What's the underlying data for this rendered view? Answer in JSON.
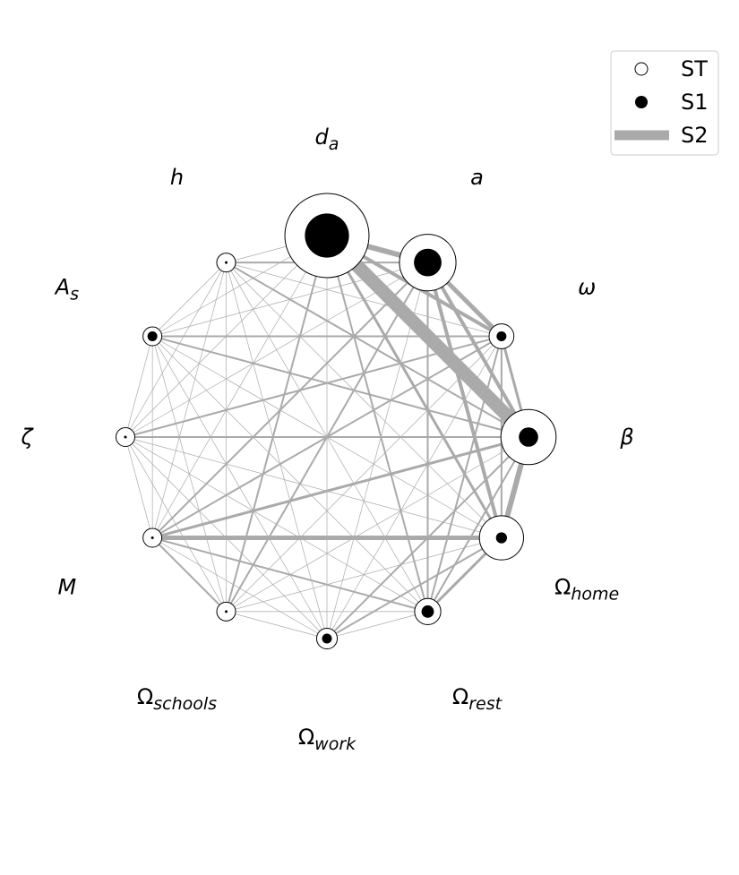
{
  "chart_data": {
    "type": "network",
    "title": "",
    "colors": {
      "edge": "#aaaaaa",
      "node_fill": "#ffffff",
      "node_stroke": "#000000",
      "first_order": "#000000"
    },
    "legend": {
      "position": "top-right",
      "items": [
        {
          "label": "ST",
          "kind": "open-circle"
        },
        {
          "label": "S1",
          "kind": "filled-circle"
        },
        {
          "label": "S2",
          "kind": "thick-line"
        }
      ]
    },
    "nodes": [
      {
        "id": "d_a",
        "base": "d",
        "sub": "a",
        "italic": true,
        "ST": 0.61,
        "S1": 0.32
      },
      {
        "id": "a",
        "base": "a",
        "sub": "",
        "italic": true,
        "ST": 0.41,
        "S1": 0.2
      },
      {
        "id": "omega",
        "base": "ω",
        "sub": "",
        "italic": true,
        "ST": 0.18,
        "S1": 0.05
      },
      {
        "id": "beta",
        "base": "β",
        "sub": "",
        "italic": true,
        "ST": 0.4,
        "S1": 0.14
      },
      {
        "id": "omega_home",
        "base": "Ω",
        "sub": "home",
        "italic": false,
        "ST": 0.32,
        "S1": 0.08
      },
      {
        "id": "omega_rest",
        "base": "Ω",
        "sub": "rest",
        "italic": false,
        "ST": 0.19,
        "S1": 0.09
      },
      {
        "id": "omega_work",
        "base": "Ω",
        "sub": "work",
        "italic": false,
        "ST": 0.15,
        "S1": 0.06
      },
      {
        "id": "omega_schools",
        "base": "Ω",
        "sub": "schools",
        "italic": false,
        "ST": 0.03,
        "S1": 0.0
      },
      {
        "id": "M",
        "base": "M",
        "sub": "",
        "italic": true,
        "ST": 0.13,
        "S1": 0.0
      },
      {
        "id": "zeta",
        "base": "ζ",
        "sub": "",
        "italic": true,
        "ST": 0.03,
        "S1": 0.0
      },
      {
        "id": "A_s",
        "base": "A",
        "sub": "s",
        "italic": true,
        "ST": 0.08,
        "S1": 0.02
      },
      {
        "id": "h",
        "base": "h",
        "sub": "",
        "italic": true,
        "ST": 0.03,
        "S1": 0.0
      }
    ],
    "edges": [
      [
        "d_a",
        "a",
        6
      ],
      [
        "d_a",
        "omega",
        4
      ],
      [
        "d_a",
        "beta",
        15
      ],
      [
        "d_a",
        "omega_home",
        3
      ],
      [
        "d_a",
        "omega_rest",
        2
      ],
      [
        "d_a",
        "omega_work",
        1
      ],
      [
        "d_a",
        "omega_schools",
        2
      ],
      [
        "d_a",
        "M",
        1
      ],
      [
        "d_a",
        "zeta",
        1
      ],
      [
        "d_a",
        "A_s",
        1
      ],
      [
        "d_a",
        "h",
        1
      ],
      [
        "a",
        "omega",
        5
      ],
      [
        "a",
        "beta",
        4
      ],
      [
        "a",
        "omega_home",
        4
      ],
      [
        "a",
        "omega_rest",
        2
      ],
      [
        "a",
        "omega_work",
        1
      ],
      [
        "a",
        "omega_schools",
        2
      ],
      [
        "a",
        "M",
        2
      ],
      [
        "a",
        "zeta",
        1
      ],
      [
        "a",
        "A_s",
        1
      ],
      [
        "a",
        "h",
        2
      ],
      [
        "omega",
        "beta",
        3
      ],
      [
        "omega",
        "omega_home",
        2
      ],
      [
        "omega",
        "omega_rest",
        2
      ],
      [
        "omega",
        "omega_work",
        1
      ],
      [
        "omega",
        "omega_schools",
        1
      ],
      [
        "omega",
        "M",
        2
      ],
      [
        "omega",
        "zeta",
        2
      ],
      [
        "omega",
        "A_s",
        2
      ],
      [
        "omega",
        "h",
        1
      ],
      [
        "beta",
        "omega_home",
        6
      ],
      [
        "beta",
        "omega_rest",
        2
      ],
      [
        "beta",
        "omega_work",
        2
      ],
      [
        "beta",
        "omega_schools",
        1
      ],
      [
        "beta",
        "M",
        3
      ],
      [
        "beta",
        "zeta",
        2
      ],
      [
        "beta",
        "A_s",
        2
      ],
      [
        "beta",
        "h",
        2
      ],
      [
        "omega_home",
        "omega_rest",
        3
      ],
      [
        "omega_home",
        "omega_work",
        2
      ],
      [
        "omega_home",
        "omega_schools",
        1
      ],
      [
        "omega_home",
        "M",
        5
      ],
      [
        "omega_home",
        "zeta",
        1
      ],
      [
        "omega_home",
        "A_s",
        1
      ],
      [
        "omega_home",
        "h",
        1
      ],
      [
        "omega_rest",
        "omega_work",
        1
      ],
      [
        "omega_rest",
        "omega_schools",
        1
      ],
      [
        "omega_rest",
        "M",
        2
      ],
      [
        "omega_rest",
        "zeta",
        1
      ],
      [
        "omega_rest",
        "A_s",
        1
      ],
      [
        "omega_rest",
        "h",
        1
      ],
      [
        "omega_work",
        "omega_schools",
        1
      ],
      [
        "omega_work",
        "M",
        1
      ],
      [
        "omega_work",
        "zeta",
        1
      ],
      [
        "omega_work",
        "A_s",
        1
      ],
      [
        "omega_work",
        "h",
        1
      ],
      [
        "omega_schools",
        "M",
        2
      ],
      [
        "omega_schools",
        "zeta",
        1
      ],
      [
        "omega_schools",
        "A_s",
        1
      ],
      [
        "omega_schools",
        "h",
        1
      ],
      [
        "M",
        "zeta",
        1
      ],
      [
        "M",
        "A_s",
        1
      ],
      [
        "M",
        "h",
        1
      ],
      [
        "zeta",
        "A_s",
        1
      ],
      [
        "zeta",
        "h",
        1
      ],
      [
        "A_s",
        "h",
        1
      ]
    ]
  }
}
